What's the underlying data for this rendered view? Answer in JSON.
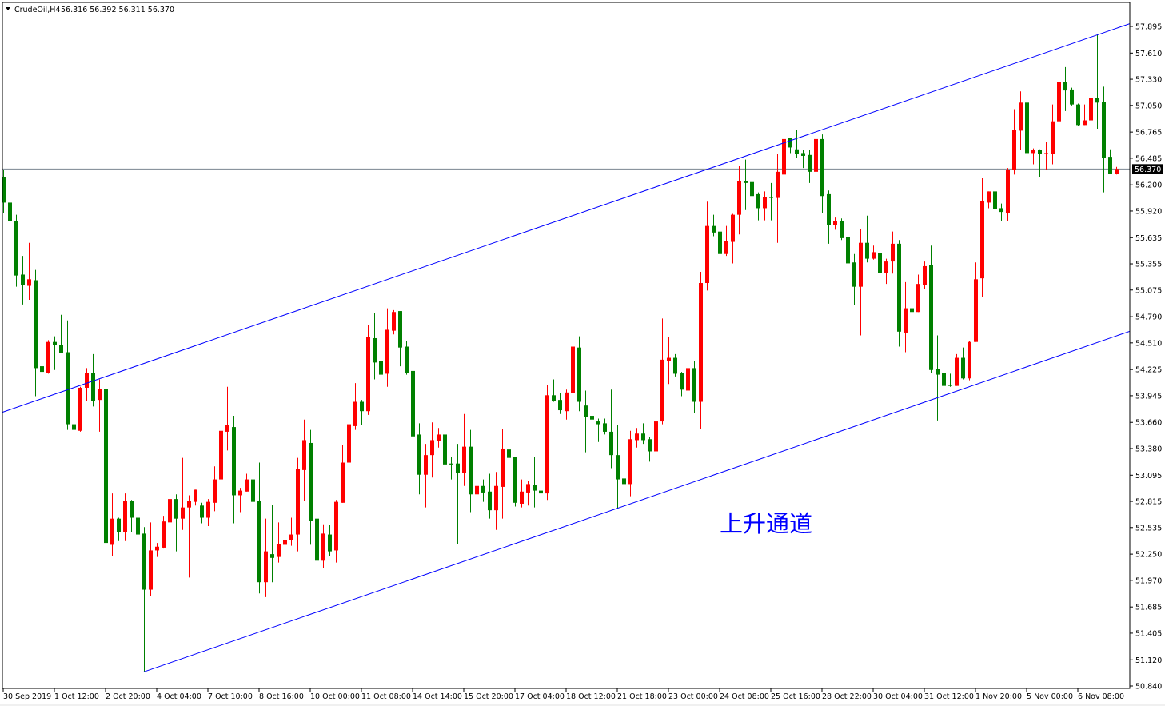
{
  "header": {
    "menu_icon": "triangle-down-icon",
    "symbol": "CrudeOil,H4",
    "ohlc_text": "56.316 56.392 56.311 56.370"
  },
  "chart_data": {
    "type": "candlestick",
    "symbol": "CrudeOil",
    "timeframe": "H4",
    "ylim": [
      50.84,
      57.895
    ],
    "grid": false,
    "y_ticks": [
      "57.895",
      "57.610",
      "57.330",
      "57.050",
      "56.765",
      "56.485",
      "56.200",
      "55.920",
      "55.635",
      "55.355",
      "55.075",
      "54.790",
      "54.510",
      "54.225",
      "53.945",
      "53.660",
      "53.380",
      "53.095",
      "52.815",
      "52.535",
      "52.250",
      "51.970",
      "51.685",
      "51.405",
      "51.120",
      "50.840"
    ],
    "x_ticks": [
      {
        "bar": 0,
        "label": "30 Sep 2019"
      },
      {
        "bar": 8,
        "label": "1 Oct 12:00"
      },
      {
        "bar": 16,
        "label": "2 Oct 20:00"
      },
      {
        "bar": 24,
        "label": "4 Oct 04:00"
      },
      {
        "bar": 32,
        "label": "7 Oct 10:00"
      },
      {
        "bar": 40,
        "label": "8 Oct 16:00"
      },
      {
        "bar": 48,
        "label": "10 Oct 00:00"
      },
      {
        "bar": 56,
        "label": "11 Oct 08:00"
      },
      {
        "bar": 64,
        "label": "14 Oct 14:00"
      },
      {
        "bar": 72,
        "label": "15 Oct 20:00"
      },
      {
        "bar": 80,
        "label": "17 Oct 04:00"
      },
      {
        "bar": 88,
        "label": "18 Oct 12:00"
      },
      {
        "bar": 96,
        "label": "21 Oct 18:00"
      },
      {
        "bar": 104,
        "label": "23 Oct 00:00"
      },
      {
        "bar": 112,
        "label": "24 Oct 08:00"
      },
      {
        "bar": 120,
        "label": "25 Oct 16:00"
      },
      {
        "bar": 128,
        "label": "28 Oct 22:00"
      },
      {
        "bar": 136,
        "label": "30 Oct 04:00"
      },
      {
        "bar": 144,
        "label": "31 Oct 12:00"
      },
      {
        "bar": 152,
        "label": "1 Nov 20:00"
      },
      {
        "bar": 160,
        "label": "5 Nov 00:00"
      },
      {
        "bar": 168,
        "label": "6 Nov 08:00"
      }
    ],
    "last_price": "56.370",
    "colors": {
      "bull": "#ff0000",
      "bear": "#008000",
      "trendline": "#0000ff",
      "bid_line": "#7a8590",
      "annotation": "#0000ff"
    },
    "annotation": "上升通道",
    "trendlines": [
      {
        "points": [
          {
            "bar": 0,
            "price": 53.77
          },
          {
            "bar": 176,
            "price": 57.92
          }
        ]
      },
      {
        "points": [
          {
            "bar": 22,
            "price": 50.99
          },
          {
            "bar": 176,
            "price": 54.63
          }
        ]
      }
    ],
    "candle_fields": [
      "open",
      "high",
      "low",
      "close"
    ],
    "candles": [
      [
        56.28,
        56.36,
        55.9,
        56.01
      ],
      [
        56.01,
        56.11,
        55.72,
        55.81
      ],
      [
        55.81,
        55.88,
        55.11,
        55.23
      ],
      [
        55.24,
        55.44,
        54.92,
        55.13
      ],
      [
        55.12,
        55.58,
        54.97,
        55.19
      ],
      [
        55.18,
        55.29,
        53.94,
        54.24
      ],
      [
        54.26,
        54.35,
        54.13,
        54.2
      ],
      [
        54.19,
        54.54,
        54.18,
        54.52
      ],
      [
        54.52,
        54.58,
        54.22,
        54.49
      ],
      [
        54.49,
        54.81,
        54.4,
        54.4
      ],
      [
        54.41,
        54.75,
        53.58,
        53.64
      ],
      [
        53.64,
        53.82,
        53.04,
        53.58
      ],
      [
        53.57,
        54.04,
        53.56,
        54.03
      ],
      [
        54.03,
        54.24,
        53.89,
        54.19
      ],
      [
        54.19,
        54.39,
        53.83,
        53.89
      ],
      [
        53.9,
        54.12,
        53.56,
        54.02
      ],
      [
        54.02,
        54.12,
        52.15,
        52.37
      ],
      [
        52.35,
        52.9,
        52.23,
        52.63
      ],
      [
        52.63,
        52.64,
        52.39,
        52.49
      ],
      [
        52.49,
        52.9,
        52.39,
        52.82
      ],
      [
        52.82,
        52.83,
        52.49,
        52.64
      ],
      [
        52.64,
        52.85,
        52.23,
        52.46
      ],
      [
        52.47,
        52.54,
        50.99,
        51.87
      ],
      [
        51.87,
        52.59,
        51.8,
        52.29
      ],
      [
        52.29,
        52.37,
        52.22,
        52.33
      ],
      [
        52.32,
        52.66,
        52.31,
        52.6
      ],
      [
        52.59,
        52.89,
        52.46,
        52.84
      ],
      [
        52.84,
        52.89,
        52.28,
        52.63
      ],
      [
        52.63,
        53.28,
        52.51,
        52.75
      ],
      [
        52.75,
        52.88,
        52.0,
        52.82
      ],
      [
        52.81,
        52.94,
        52.77,
        52.94
      ],
      [
        52.77,
        52.8,
        52.58,
        52.64
      ],
      [
        52.64,
        52.84,
        52.55,
        52.81
      ],
      [
        52.8,
        53.19,
        52.71,
        53.05
      ],
      [
        53.05,
        53.65,
        52.96,
        53.57
      ],
      [
        53.56,
        54.04,
        53.36,
        53.63
      ],
      [
        53.61,
        53.73,
        52.58,
        52.88
      ],
      [
        52.88,
        52.96,
        52.7,
        52.93
      ],
      [
        52.92,
        53.11,
        52.92,
        53.05
      ],
      [
        53.05,
        53.23,
        52.78,
        52.81
      ],
      [
        52.82,
        53.23,
        51.83,
        51.95
      ],
      [
        51.95,
        52.63,
        51.79,
        52.28
      ],
      [
        52.25,
        52.78,
        51.95,
        52.21
      ],
      [
        52.22,
        52.59,
        52.16,
        52.36
      ],
      [
        52.35,
        52.53,
        52.3,
        52.4
      ],
      [
        52.4,
        52.64,
        52.34,
        52.46
      ],
      [
        52.46,
        53.28,
        52.28,
        53.16
      ],
      [
        53.15,
        53.69,
        52.82,
        53.47
      ],
      [
        53.44,
        53.58,
        52.35,
        52.61
      ],
      [
        52.63,
        52.72,
        51.39,
        52.18
      ],
      [
        52.18,
        52.57,
        52.1,
        52.47
      ],
      [
        52.46,
        52.56,
        52.23,
        52.28
      ],
      [
        52.29,
        52.83,
        52.16,
        52.81
      ],
      [
        52.8,
        53.42,
        52.8,
        53.23
      ],
      [
        53.23,
        53.73,
        53.05,
        53.64
      ],
      [
        53.62,
        54.08,
        53.58,
        53.88
      ],
      [
        53.88,
        53.9,
        53.63,
        53.78
      ],
      [
        53.78,
        54.7,
        53.74,
        54.57
      ],
      [
        54.56,
        54.83,
        54.12,
        54.3
      ],
      [
        54.32,
        54.61,
        53.6,
        54.17
      ],
      [
        54.18,
        54.88,
        54.04,
        54.65
      ],
      [
        54.64,
        54.86,
        54.6,
        54.84
      ],
      [
        54.85,
        54.85,
        54.26,
        54.46
      ],
      [
        54.47,
        54.53,
        54.17,
        54.19
      ],
      [
        54.21,
        54.31,
        53.43,
        53.51
      ],
      [
        53.53,
        53.65,
        52.89,
        53.1
      ],
      [
        53.1,
        53.43,
        52.75,
        53.31
      ],
      [
        53.31,
        53.66,
        53.07,
        53.47
      ],
      [
        53.46,
        53.6,
        53.39,
        53.53
      ],
      [
        53.53,
        53.54,
        53.17,
        53.21
      ],
      [
        53.22,
        53.29,
        53.05,
        53.21
      ],
      [
        53.22,
        53.43,
        52.36,
        53.12
      ],
      [
        53.12,
        53.75,
        52.98,
        53.4
      ],
      [
        53.4,
        53.58,
        52.7,
        52.89
      ],
      [
        52.89,
        53.0,
        52.81,
        52.98
      ],
      [
        52.98,
        53.05,
        52.81,
        52.91
      ],
      [
        52.92,
        53.11,
        52.63,
        52.72
      ],
      [
        52.72,
        53.13,
        52.51,
        52.98
      ],
      [
        52.97,
        53.59,
        52.63,
        53.38
      ],
      [
        53.37,
        53.67,
        53.15,
        53.28
      ],
      [
        53.29,
        53.29,
        52.76,
        52.8
      ],
      [
        52.79,
        53.05,
        52.75,
        52.92
      ],
      [
        52.91,
        53.03,
        52.77,
        53.0
      ],
      [
        52.99,
        53.29,
        52.75,
        52.93
      ],
      [
        52.93,
        53.42,
        52.59,
        52.9
      ],
      [
        52.9,
        54.06,
        52.83,
        53.95
      ],
      [
        53.95,
        54.12,
        53.88,
        53.89
      ],
      [
        53.9,
        53.97,
        53.75,
        53.79
      ],
      [
        53.78,
        54.01,
        53.69,
        53.98
      ],
      [
        53.97,
        54.54,
        53.87,
        54.47
      ],
      [
        54.46,
        54.58,
        53.78,
        53.88
      ],
      [
        53.84,
        54.0,
        53.34,
        53.72
      ],
      [
        53.73,
        53.76,
        53.65,
        53.69
      ],
      [
        53.67,
        53.7,
        53.45,
        53.64
      ],
      [
        53.65,
        53.7,
        53.53,
        53.56
      ],
      [
        53.56,
        54.01,
        53.17,
        53.31
      ],
      [
        53.31,
        53.63,
        52.73,
        53.05
      ],
      [
        53.06,
        53.39,
        52.86,
        53.0
      ],
      [
        53.0,
        53.57,
        52.87,
        53.48
      ],
      [
        53.47,
        53.6,
        53.39,
        53.54
      ],
      [
        53.54,
        53.65,
        53.43,
        53.47
      ],
      [
        53.48,
        53.5,
        53.24,
        53.35
      ],
      [
        53.35,
        53.81,
        53.19,
        53.67
      ],
      [
        53.67,
        54.77,
        53.64,
        54.33
      ],
      [
        54.32,
        54.57,
        54.07,
        54.35
      ],
      [
        54.35,
        54.39,
        54.15,
        54.18
      ],
      [
        54.19,
        54.2,
        53.94,
        54.01
      ],
      [
        54.0,
        54.26,
        53.99,
        54.24
      ],
      [
        54.24,
        54.32,
        53.76,
        53.88
      ],
      [
        53.88,
        55.27,
        53.59,
        55.15
      ],
      [
        55.15,
        56.02,
        55.07,
        55.76
      ],
      [
        55.76,
        55.88,
        55.65,
        55.69
      ],
      [
        55.7,
        55.71,
        55.4,
        55.46
      ],
      [
        55.46,
        55.76,
        55.44,
        55.6
      ],
      [
        55.59,
        55.89,
        55.36,
        55.88
      ],
      [
        55.88,
        56.4,
        55.67,
        56.24
      ],
      [
        56.24,
        56.47,
        55.93,
        56.22
      ],
      [
        56.23,
        56.23,
        56.02,
        56.08
      ],
      [
        56.1,
        56.12,
        55.82,
        55.95
      ],
      [
        55.95,
        56.13,
        55.82,
        56.07
      ],
      [
        56.07,
        56.22,
        55.82,
        56.06
      ],
      [
        56.06,
        56.53,
        55.58,
        56.34
      ],
      [
        56.31,
        56.71,
        56.16,
        56.69
      ],
      [
        56.7,
        56.7,
        56.54,
        56.6
      ],
      [
        56.58,
        56.79,
        56.49,
        56.53
      ],
      [
        56.54,
        56.57,
        56.38,
        56.51
      ],
      [
        56.52,
        56.57,
        56.22,
        56.34
      ],
      [
        56.34,
        56.9,
        56.25,
        56.69
      ],
      [
        56.69,
        56.74,
        55.9,
        56.08
      ],
      [
        56.1,
        56.14,
        55.57,
        55.77
      ],
      [
        55.77,
        55.85,
        55.72,
        55.81
      ],
      [
        55.81,
        55.84,
        55.61,
        55.63
      ],
      [
        55.64,
        55.65,
        55.35,
        55.36
      ],
      [
        55.37,
        55.46,
        54.91,
        55.11
      ],
      [
        55.11,
        55.73,
        54.59,
        55.58
      ],
      [
        55.58,
        55.87,
        55.37,
        55.41
      ],
      [
        55.41,
        55.55,
        55.4,
        55.48
      ],
      [
        55.47,
        55.55,
        55.18,
        55.26
      ],
      [
        55.26,
        55.41,
        55.14,
        55.38
      ],
      [
        55.38,
        55.7,
        55.25,
        55.57
      ],
      [
        55.57,
        55.61,
        54.47,
        54.63
      ],
      [
        54.62,
        55.16,
        54.41,
        54.88
      ],
      [
        54.88,
        54.95,
        54.81,
        54.84
      ],
      [
        54.84,
        55.24,
        54.84,
        55.14
      ],
      [
        55.13,
        55.38,
        55.09,
        55.33
      ],
      [
        55.34,
        55.55,
        54.19,
        54.22
      ],
      [
        54.23,
        54.59,
        53.68,
        54.17
      ],
      [
        54.19,
        54.31,
        53.86,
        54.05
      ],
      [
        54.06,
        54.18,
        54.04,
        54.05
      ],
      [
        54.05,
        54.39,
        54.05,
        54.35
      ],
      [
        54.35,
        54.46,
        54.12,
        54.13
      ],
      [
        54.13,
        54.53,
        54.11,
        54.52
      ],
      [
        54.52,
        55.37,
        54.52,
        55.19
      ],
      [
        55.2,
        56.27,
        55.0,
        56.03
      ],
      [
        56.01,
        56.13,
        55.95,
        56.13
      ],
      [
        56.13,
        56.38,
        55.83,
        55.94
      ],
      [
        55.95,
        56.0,
        55.81,
        55.91
      ],
      [
        55.9,
        56.38,
        55.81,
        56.36
      ],
      [
        56.36,
        57.01,
        56.31,
        56.79
      ],
      [
        56.78,
        57.2,
        56.57,
        57.08
      ],
      [
        57.08,
        57.38,
        56.39,
        56.54
      ],
      [
        56.54,
        56.59,
        56.42,
        56.57
      ],
      [
        56.57,
        56.58,
        56.28,
        56.53
      ],
      [
        56.53,
        56.66,
        56.36,
        56.54
      ],
      [
        56.53,
        57.06,
        56.42,
        56.88
      ],
      [
        56.88,
        57.37,
        56.8,
        57.3
      ],
      [
        57.3,
        57.46,
        56.99,
        57.21
      ],
      [
        57.22,
        57.24,
        57.05,
        57.06
      ],
      [
        57.06,
        57.07,
        56.83,
        56.84
      ],
      [
        56.84,
        57.06,
        56.84,
        56.89
      ],
      [
        56.89,
        57.26,
        56.71,
        57.13
      ],
      [
        57.13,
        57.81,
        56.8,
        57.08
      ],
      [
        57.09,
        57.25,
        56.12,
        56.49
      ],
      [
        56.5,
        56.58,
        56.32,
        56.32
      ],
      [
        56.316,
        56.392,
        56.311,
        56.37
      ]
    ]
  }
}
